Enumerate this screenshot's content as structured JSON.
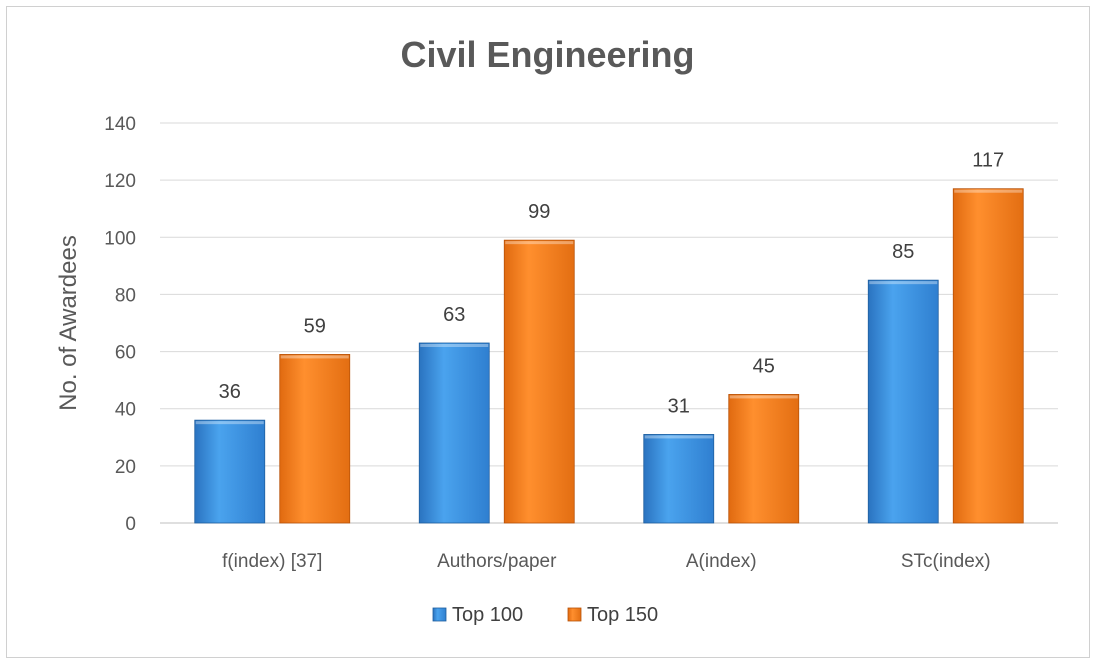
{
  "chart_data": {
    "type": "bar",
    "title": "Civil Engineering",
    "xlabel": "",
    "ylabel": "No. of Awardees",
    "ylim": [
      0,
      140
    ],
    "yticks": [
      0,
      20,
      40,
      60,
      80,
      100,
      120,
      140
    ],
    "grid": true,
    "legend_position": "bottom",
    "categories": [
      "f(index) [37]",
      "Authors/paper",
      "A(index)",
      "STc(index)"
    ],
    "series": [
      {
        "name": "Top 100",
        "values": [
          36,
          63,
          31,
          85
        ],
        "color": "#3b8fd9"
      },
      {
        "name": "Top 150",
        "values": [
          59,
          99,
          45,
          117
        ],
        "color": "#f07a1a"
      }
    ]
  }
}
